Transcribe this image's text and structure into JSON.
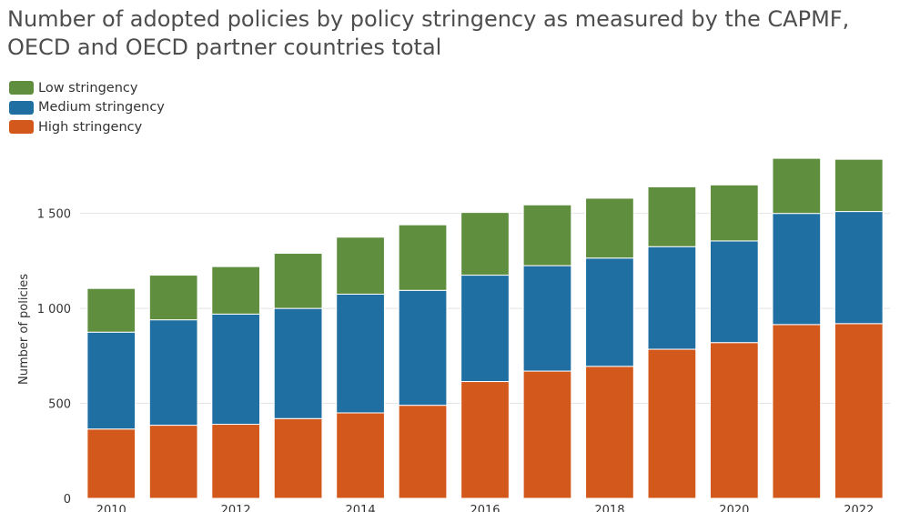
{
  "title": "Number of adopted policies by policy stringency as measured by the CAPMF, OECD and OECD partner countries total",
  "colors": {
    "low": "#5f8e3e",
    "medium": "#1f6fa3",
    "high": "#d2581b",
    "grid": "#e4e4e4",
    "text": "#333333"
  },
  "legend": [
    {
      "label": "Low stringency",
      "color": "#5f8e3e"
    },
    {
      "label": "Medium stringency",
      "color": "#1f6fa3"
    },
    {
      "label": "High stringency",
      "color": "#d2581b"
    }
  ],
  "chart_data": {
    "type": "bar",
    "stacked": true,
    "categories": [
      "2010",
      "2011",
      "2012",
      "2013",
      "2014",
      "2015",
      "2016",
      "2017",
      "2018",
      "2019",
      "2020",
      "2021",
      "2022"
    ],
    "x_tick_labels": [
      "2010",
      "2012",
      "2014",
      "2016",
      "2018",
      "2020",
      "2022"
    ],
    "series": [
      {
        "name": "High stringency",
        "color": "#d2581b",
        "values": [
          365,
          385,
          390,
          420,
          450,
          490,
          615,
          670,
          695,
          785,
          820,
          915,
          920
        ]
      },
      {
        "name": "Medium stringency",
        "color": "#1f6fa3",
        "values": [
          510,
          555,
          580,
          580,
          625,
          605,
          560,
          555,
          570,
          540,
          535,
          585,
          590
        ]
      },
      {
        "name": "Low stringency",
        "color": "#5f8e3e",
        "values": [
          230,
          235,
          250,
          290,
          300,
          345,
          330,
          320,
          315,
          315,
          295,
          290,
          275
        ]
      }
    ],
    "ylabel": "Number of policies",
    "ylim": [
      0,
      1800
    ],
    "y_ticks": [
      0,
      500,
      1000,
      1500
    ],
    "y_tick_labels": [
      "0",
      "500",
      "1 000",
      "1 500"
    ],
    "grid": true,
    "legend_position": "top-left"
  }
}
